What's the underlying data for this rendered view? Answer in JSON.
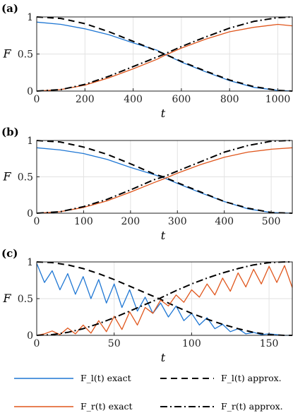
{
  "panels": [
    {
      "label": "(a)",
      "ylabel": "F",
      "xlabel": "t"
    },
    {
      "label": "(b)",
      "ylabel": "F",
      "xlabel": "t"
    },
    {
      "label": "(c)",
      "ylabel": "F",
      "xlabel": "t"
    }
  ],
  "legend": [
    {
      "label": "F_l(t) exact",
      "color": "#1f77d4",
      "style": "solid"
    },
    {
      "label": "F_l(t) approx.",
      "color": "#000000",
      "style": "dashed"
    },
    {
      "label": "F_r(t) exact",
      "color": "#e0561c",
      "style": "solid"
    },
    {
      "label": "F_r(t) approx.",
      "color": "#000000",
      "style": "dashdot"
    }
  ],
  "chart_data": [
    {
      "type": "line",
      "title": "(a)",
      "xlabel": "t",
      "ylabel": "F",
      "xlim": [
        0,
        1060
      ],
      "ylim": [
        0,
        1
      ],
      "xticks": [
        0,
        200,
        400,
        600,
        800,
        1000
      ],
      "yticks": [
        0,
        0.5,
        1
      ],
      "ytick_labels": [
        "0",
        "0.5",
        "1"
      ],
      "grid": true,
      "series": [
        {
          "name": "F_l(t) exact",
          "color": "#1f77d4",
          "x": [
            0,
            100,
            200,
            300,
            400,
            500,
            530,
            600,
            700,
            800,
            900,
            1000,
            1060
          ],
          "y": [
            0.93,
            0.9,
            0.84,
            0.76,
            0.65,
            0.55,
            0.5,
            0.39,
            0.26,
            0.14,
            0.05,
            0.01,
            0.0
          ]
        },
        {
          "name": "F_l(t) approx.",
          "color": "#000000",
          "x": [
            0,
            100,
            200,
            300,
            400,
            500,
            530,
            600,
            700,
            800,
            900,
            1000,
            1060
          ],
          "y": [
            1.0,
            0.98,
            0.91,
            0.8,
            0.67,
            0.54,
            0.5,
            0.4,
            0.27,
            0.15,
            0.06,
            0.01,
            0.0
          ]
        },
        {
          "name": "F_r(t) exact",
          "color": "#e0561c",
          "x": [
            0,
            100,
            200,
            300,
            400,
            500,
            530,
            600,
            700,
            800,
            900,
            1000,
            1060
          ],
          "y": [
            0.0,
            0.02,
            0.08,
            0.18,
            0.3,
            0.43,
            0.48,
            0.58,
            0.7,
            0.8,
            0.86,
            0.9,
            0.88
          ]
        },
        {
          "name": "F_r(t) approx.",
          "color": "#000000",
          "x": [
            0,
            100,
            200,
            300,
            400,
            500,
            530,
            600,
            700,
            800,
            900,
            1000,
            1060
          ],
          "y": [
            0.0,
            0.02,
            0.09,
            0.2,
            0.33,
            0.46,
            0.5,
            0.6,
            0.73,
            0.85,
            0.94,
            0.99,
            1.0
          ]
        }
      ]
    },
    {
      "type": "line",
      "title": "(b)",
      "xlabel": "t",
      "ylabel": "F",
      "xlim": [
        0,
        545
      ],
      "ylim": [
        0,
        1
      ],
      "xticks": [
        0,
        100,
        200,
        300,
        400,
        500
      ],
      "yticks": [
        0,
        0.5,
        1
      ],
      "ytick_labels": [
        "0",
        "0.5",
        "1"
      ],
      "grid": true,
      "series": [
        {
          "name": "F_l(t) exact",
          "color": "#1f77d4",
          "x": [
            0,
            50,
            100,
            150,
            200,
            250,
            270,
            300,
            350,
            400,
            450,
            500,
            545
          ],
          "y": [
            0.9,
            0.87,
            0.82,
            0.74,
            0.63,
            0.53,
            0.49,
            0.41,
            0.28,
            0.16,
            0.06,
            0.01,
            0.0
          ]
        },
        {
          "name": "F_l(t) approx.",
          "color": "#000000",
          "x": [
            0,
            50,
            100,
            150,
            200,
            250,
            270,
            300,
            350,
            400,
            450,
            500,
            545
          ],
          "y": [
            1.0,
            0.98,
            0.91,
            0.81,
            0.68,
            0.54,
            0.5,
            0.42,
            0.29,
            0.16,
            0.07,
            0.01,
            0.0
          ]
        },
        {
          "name": "F_r(t) exact",
          "color": "#e0561c",
          "x": [
            0,
            50,
            100,
            150,
            200,
            250,
            270,
            300,
            350,
            400,
            450,
            500,
            545
          ],
          "y": [
            0.0,
            0.02,
            0.08,
            0.17,
            0.29,
            0.42,
            0.47,
            0.55,
            0.67,
            0.77,
            0.84,
            0.88,
            0.9
          ]
        },
        {
          "name": "F_r(t) approx.",
          "color": "#000000",
          "x": [
            0,
            50,
            100,
            150,
            200,
            250,
            270,
            300,
            350,
            400,
            450,
            500,
            545
          ],
          "y": [
            0.0,
            0.02,
            0.09,
            0.19,
            0.32,
            0.46,
            0.5,
            0.58,
            0.71,
            0.84,
            0.93,
            0.99,
            1.0
          ]
        }
      ]
    },
    {
      "type": "line",
      "title": "(c)",
      "xlabel": "t",
      "ylabel": "F",
      "xlim": [
        0,
        165
      ],
      "ylim": [
        0,
        1
      ],
      "xticks": [
        0,
        50,
        100,
        150
      ],
      "yticks": [
        0,
        0.5,
        1
      ],
      "ytick_labels": [
        "0",
        "0.5",
        "1"
      ],
      "grid": true,
      "series": [
        {
          "name": "F_l(t) exact",
          "color": "#1f77d4",
          "x": [
            0,
            5,
            10,
            15,
            20,
            25,
            30,
            35,
            40,
            45,
            50,
            55,
            60,
            65,
            70,
            75,
            80,
            85,
            90,
            95,
            100,
            105,
            110,
            115,
            120,
            125,
            130,
            135,
            140,
            145,
            150,
            155,
            160,
            165
          ],
          "y": [
            0.98,
            0.72,
            0.88,
            0.62,
            0.84,
            0.56,
            0.8,
            0.5,
            0.76,
            0.44,
            0.7,
            0.38,
            0.62,
            0.33,
            0.52,
            0.3,
            0.44,
            0.25,
            0.4,
            0.2,
            0.3,
            0.14,
            0.24,
            0.09,
            0.15,
            0.05,
            0.09,
            0.02,
            0.04,
            0.01,
            0.02,
            0.01,
            0.0,
            0.0
          ]
        },
        {
          "name": "F_l(t) approx.",
          "color": "#000000",
          "x": [
            0,
            10,
            20,
            30,
            40,
            50,
            60,
            70,
            80,
            90,
            100,
            110,
            120,
            130,
            140,
            150,
            160,
            165
          ],
          "y": [
            1.0,
            0.99,
            0.96,
            0.91,
            0.84,
            0.76,
            0.67,
            0.58,
            0.49,
            0.39,
            0.3,
            0.22,
            0.15,
            0.09,
            0.04,
            0.01,
            0.0,
            0.0
          ]
        },
        {
          "name": "F_r(t) exact",
          "color": "#e0561c",
          "x": [
            0,
            5,
            10,
            15,
            20,
            25,
            30,
            35,
            40,
            45,
            50,
            55,
            60,
            65,
            70,
            75,
            80,
            85,
            90,
            95,
            100,
            105,
            110,
            115,
            120,
            125,
            130,
            135,
            140,
            145,
            150,
            155,
            160,
            165
          ],
          "y": [
            0.0,
            0.02,
            0.06,
            0.01,
            0.1,
            0.02,
            0.14,
            0.03,
            0.2,
            0.05,
            0.26,
            0.08,
            0.32,
            0.14,
            0.38,
            0.3,
            0.48,
            0.4,
            0.55,
            0.45,
            0.62,
            0.52,
            0.7,
            0.55,
            0.78,
            0.6,
            0.85,
            0.66,
            0.9,
            0.7,
            0.94,
            0.72,
            0.95,
            0.65
          ]
        },
        {
          "name": "F_r(t) approx.",
          "color": "#000000",
          "x": [
            0,
            10,
            20,
            30,
            40,
            50,
            60,
            70,
            80,
            90,
            100,
            110,
            120,
            130,
            140,
            150,
            160,
            165
          ],
          "y": [
            0.0,
            0.01,
            0.04,
            0.09,
            0.16,
            0.24,
            0.33,
            0.42,
            0.51,
            0.61,
            0.7,
            0.78,
            0.85,
            0.91,
            0.96,
            0.99,
            1.0,
            1.0
          ]
        }
      ]
    }
  ]
}
